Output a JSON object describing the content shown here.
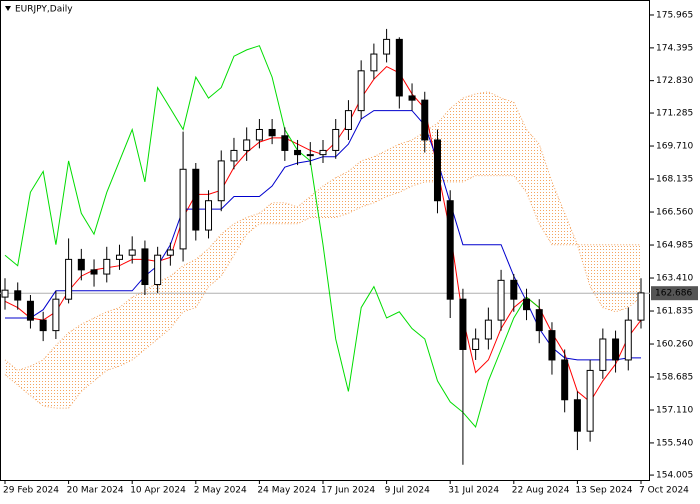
{
  "chart_data": {
    "type": "candlestick",
    "title": "EURJPY,Daily",
    "x": [
      "29 Feb 2024",
      null,
      null,
      null,
      null,
      "20 Mar 2024",
      null,
      null,
      null,
      null,
      "10 Apr 2024",
      null,
      null,
      null,
      null,
      "2 May 2024",
      null,
      null,
      null,
      null,
      "24 May 2024",
      null,
      null,
      null,
      null,
      "17 Jun 2024",
      null,
      null,
      null,
      null,
      "9 Jul 2024",
      null,
      null,
      null,
      null,
      "31 Jul 2024",
      null,
      null,
      null,
      null,
      "22 Aug 2024",
      null,
      null,
      null,
      null,
      "13 Sep 2024",
      null,
      null,
      null,
      null,
      "7 Oct 2024"
    ],
    "open": [
      162.5,
      162.8,
      162.3,
      161.4,
      160.9,
      162.4,
      164.3,
      163.8,
      163.6,
      164.3,
      164.5,
      164.8,
      163.1,
      164.5,
      164.8,
      168.6,
      165.7,
      167.1,
      169.0,
      169.5,
      170.0,
      170.5,
      170.2,
      169.5,
      169.3,
      169.3,
      169.5,
      170.5,
      171.4,
      173.3,
      174.1,
      174.8,
      172.1,
      171.9,
      170.0,
      167.1,
      162.4,
      160.0,
      160.5,
      161.4,
      163.3,
      162.4,
      161.9,
      160.9,
      159.5,
      157.6,
      156.1,
      159.0,
      160.5,
      159.5,
      161.4
    ],
    "high": [
      163.4,
      163.2,
      162.6,
      161.8,
      162.8,
      165.3,
      164.8,
      164.3,
      164.9,
      165.0,
      165.4,
      165.2,
      164.9,
      165.1,
      170.4,
      168.9,
      167.6,
      169.5,
      170.1,
      170.6,
      171.0,
      171.0,
      170.6,
      170.0,
      169.9,
      170.0,
      171.0,
      171.9,
      173.8,
      174.6,
      175.3,
      174.9,
      172.7,
      172.3,
      170.5,
      167.6,
      162.9,
      161.0,
      162.0,
      163.8,
      163.6,
      162.9,
      162.4,
      161.3,
      160.0,
      158.0,
      159.5,
      161.0,
      160.9,
      162.0,
      163.4
    ],
    "low": [
      161.9,
      161.9,
      161.0,
      160.4,
      160.5,
      162.2,
      163.3,
      163.0,
      163.2,
      163.8,
      164.1,
      162.6,
      162.7,
      164.0,
      164.2,
      165.2,
      165.3,
      166.6,
      168.6,
      169.0,
      169.6,
      169.8,
      169.0,
      168.8,
      168.8,
      168.9,
      169.1,
      170.0,
      171.0,
      172.9,
      173.7,
      171.5,
      171.4,
      169.4,
      166.5,
      161.5,
      154.5,
      159.5,
      160.0,
      160.9,
      161.8,
      161.4,
      160.3,
      158.8,
      157.0,
      155.2,
      155.6,
      158.6,
      158.9,
      159.0,
      161.0
    ],
    "close": [
      162.83,
      162.36,
      161.4,
      160.9,
      162.4,
      164.3,
      163.8,
      163.6,
      164.3,
      164.5,
      164.75,
      163.1,
      164.5,
      164.75,
      168.6,
      165.7,
      167.1,
      169.0,
      169.5,
      170.0,
      170.5,
      170.2,
      169.5,
      169.3,
      169.3,
      169.5,
      170.5,
      171.4,
      173.3,
      174.1,
      174.8,
      172.1,
      171.9,
      170.0,
      167.1,
      162.4,
      160.0,
      160.5,
      161.4,
      163.3,
      162.4,
      161.9,
      160.9,
      159.5,
      157.6,
      156.1,
      159.0,
      160.5,
      159.5,
      161.4,
      162.7
    ],
    "cloud": {
      "color": "#f4a460",
      "span_a": [
        159.5,
        159.0,
        159.2,
        159.5,
        160.2,
        160.8,
        161.2,
        161.5,
        161.8,
        162.0,
        162.5,
        162.8,
        163.2,
        163.5,
        164.0,
        164.3,
        164.8,
        165.5,
        166.0,
        166.3,
        166.5,
        167.0,
        167.0,
        166.8,
        167.3,
        167.8,
        168.2,
        168.5,
        169.0,
        169.2,
        169.5,
        169.8,
        170.0,
        170.4,
        170.8,
        171.5,
        172.0,
        172.2,
        172.3,
        172.0,
        171.8,
        170.5,
        169.8,
        168.0,
        166.5,
        165.0,
        163.0,
        162.0,
        161.8,
        162.0,
        162.5
      ],
      "span_b": [
        158.8,
        158.3,
        157.8,
        157.3,
        157.2,
        157.2,
        158.0,
        158.5,
        159.0,
        159.2,
        159.5,
        160.0,
        160.5,
        161.0,
        161.8,
        162.0,
        163.0,
        163.5,
        164.5,
        165.5,
        166.0,
        166.0,
        166.0,
        166.0,
        166.3,
        166.3,
        166.3,
        166.5,
        166.8,
        167.0,
        167.3,
        167.5,
        167.8,
        168.0,
        168.0,
        168.0,
        168.0,
        168.3,
        168.3,
        168.3,
        168.3,
        167.5,
        166.0,
        165.0,
        165.0,
        165.0,
        165.0,
        165.0,
        165.0,
        165.0,
        165.0
      ]
    },
    "lines": [
      {
        "color": "#ff0000",
        "values": [
          162.3,
          162.0,
          161.5,
          161.4,
          161.8,
          162.8,
          163.5,
          163.8,
          163.9,
          164.0,
          164.3,
          164.3,
          164.2,
          164.4,
          166.3,
          167.4,
          167.4,
          167.6,
          168.7,
          169.4,
          169.9,
          170.1,
          170.1,
          169.8,
          169.5,
          169.3,
          169.9,
          170.8,
          172.0,
          172.9,
          173.5,
          173.2,
          172.2,
          171.5,
          168.6,
          165.6,
          161.5,
          158.9,
          159.5,
          161.0,
          162.0,
          162.5,
          162.0,
          160.8,
          159.8,
          158.0,
          157.5,
          158.5,
          159.3,
          160.6,
          161.4
        ]
      },
      {
        "color": "#0000cd",
        "values": [
          161.5,
          161.5,
          161.5,
          161.9,
          162.8,
          162.8,
          162.8,
          162.8,
          162.8,
          162.8,
          162.8,
          163.5,
          164.0,
          165.0,
          166.7,
          166.7,
          166.7,
          166.7,
          167.3,
          167.3,
          167.3,
          167.8,
          168.7,
          168.9,
          169.0,
          169.2,
          169.2,
          169.8,
          171.0,
          171.4,
          171.4,
          171.4,
          171.4,
          170.7,
          169.0,
          167.0,
          165.0,
          165.0,
          165.0,
          165.0,
          163.5,
          162.3,
          161.0,
          160.1,
          159.6,
          159.5,
          159.5,
          159.5,
          159.5,
          159.6,
          159.6
        ]
      },
      {
        "color": "#00dd00",
        "values": [
          164.5,
          164.0,
          167.5,
          168.5,
          165.0,
          169.0,
          166.5,
          165.5,
          167.5,
          169.0,
          170.5,
          168.0,
          172.5,
          171.5,
          170.5,
          173.0,
          172.0,
          172.5,
          174.0,
          174.3,
          174.5,
          173.0,
          170.5,
          169.5,
          169.0,
          165.0,
          160.5,
          158.0,
          162.0,
          163.0,
          161.5,
          161.8,
          161.0,
          160.5,
          158.5,
          157.5,
          157.0,
          156.3,
          158.5,
          160.0,
          161.5,
          162.5,
          162.0,
          null,
          null,
          null,
          null,
          null,
          null,
          null,
          null
        ]
      }
    ],
    "last_price": 162.686,
    "ylim": [
      153.77,
      176.68
    ],
    "yticks": [
      175.965,
      174.395,
      {
        "value": 172.83,
        "label": "172.830"
      },
      171.285,
      {
        "value": 169.71,
        "label": "169.710"
      },
      168.135,
      {
        "value": 166.56,
        "label": "166.560"
      },
      164.985,
      {
        "value": 163.41,
        "label": "163.410"
      },
      161.835,
      {
        "value": 160.26,
        "label": "160.260"
      },
      158.685,
      {
        "value": 157.11,
        "label": "157.110"
      },
      {
        "value": 155.54,
        "label": "155.540"
      },
      154.005
    ]
  }
}
